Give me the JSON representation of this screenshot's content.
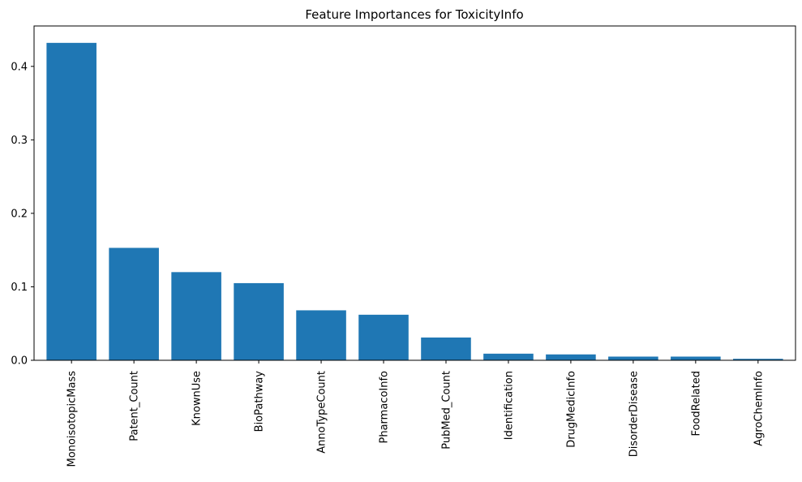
{
  "chart_data": {
    "type": "bar",
    "title": "Feature Importances for ToxicityInfo",
    "xlabel": "",
    "ylabel": "",
    "categories": [
      "MonoisotopicMass",
      "Patent_Count",
      "KnownUse",
      "BioPathway",
      "AnnoTypeCount",
      "PharmacoInfo",
      "PubMed_Count",
      "Identification",
      "DrugMedicInfo",
      "DisorderDisease",
      "FoodRelated",
      "AgroChemInfo"
    ],
    "values": [
      0.432,
      0.153,
      0.12,
      0.105,
      0.068,
      0.062,
      0.031,
      0.009,
      0.008,
      0.005,
      0.005,
      0.002
    ],
    "ylim": [
      0,
      0.455
    ],
    "yticks": [
      0.0,
      0.1,
      0.2,
      0.3,
      0.4
    ],
    "ytick_labels": [
      "0.0",
      "0.1",
      "0.2",
      "0.3",
      "0.4"
    ],
    "bar_color": "#1f77b4",
    "grid": false,
    "legend": "none"
  }
}
